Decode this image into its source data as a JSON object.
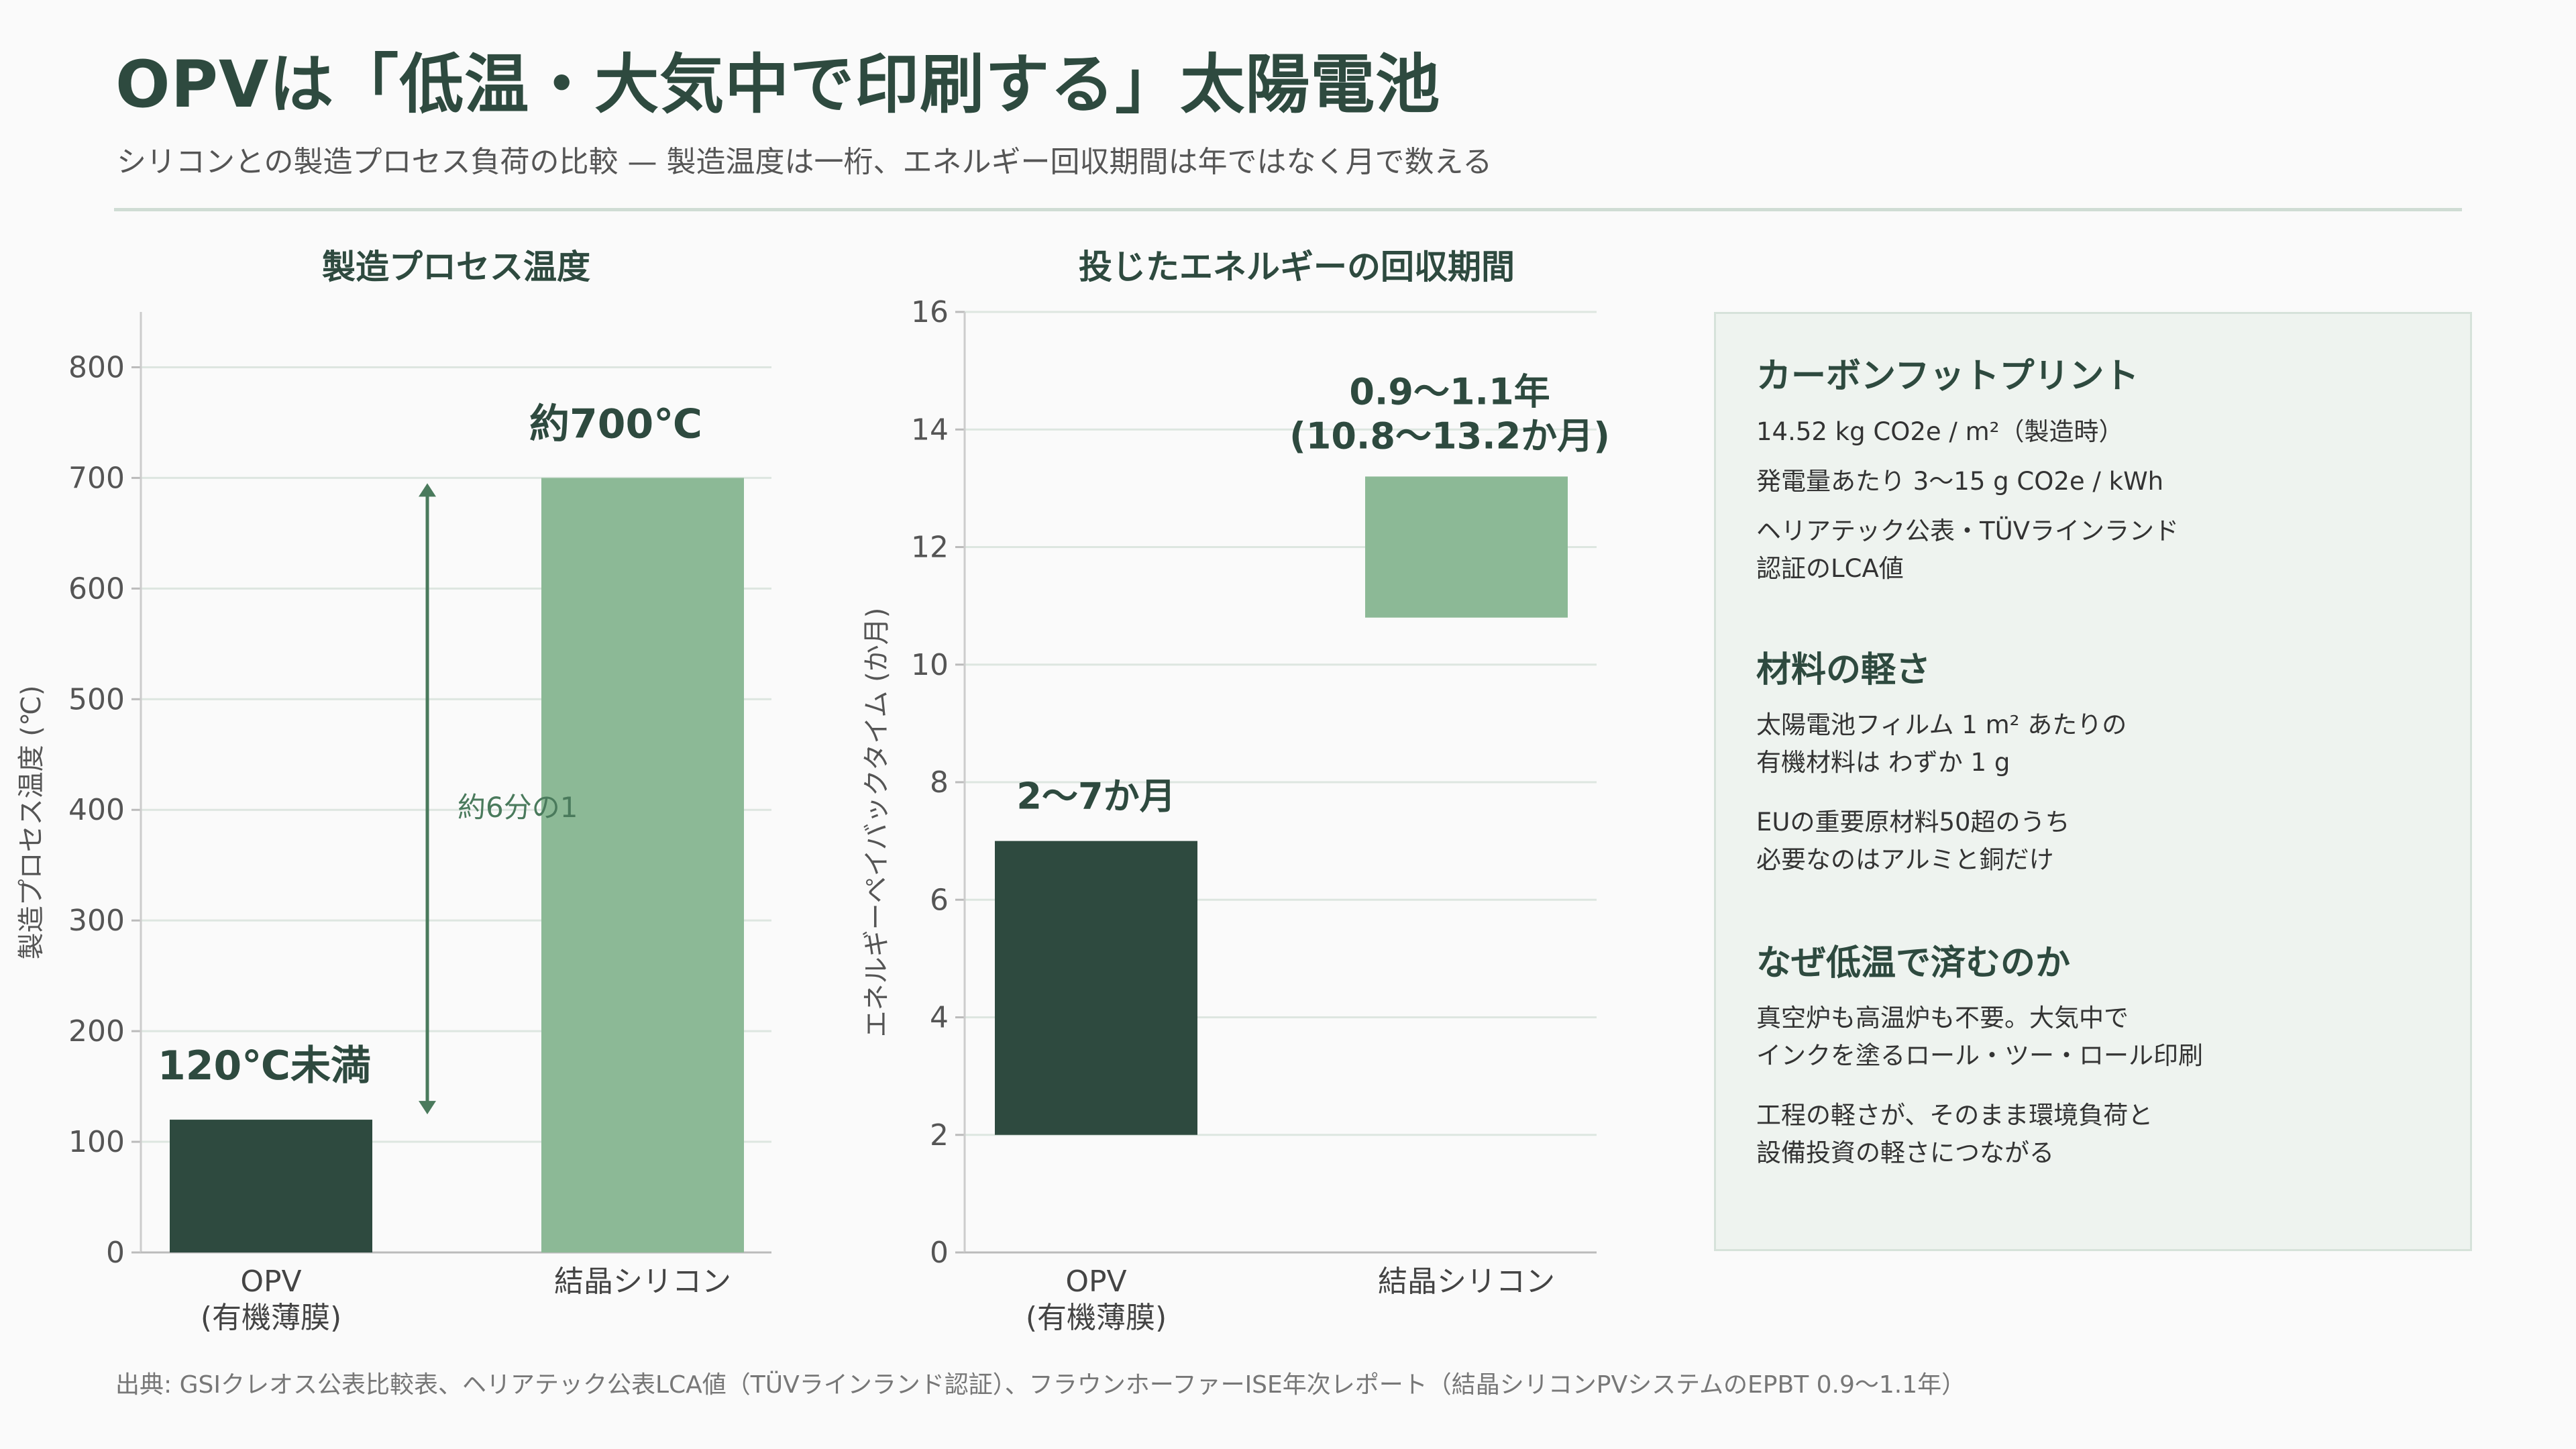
{
  "title": "OPVは「低温・大気中で印刷する」太陽電池",
  "subtitle": "シリコンとの製造プロセス負荷の比較 — 製造温度は一桁、エネルギー回収期間は年ではなく月で数える",
  "colors": {
    "dark": "#2e4a3f",
    "light": "#8cb996",
    "grid": "#dde6e0",
    "accent": "#4a7a5c"
  },
  "chart_data": [
    {
      "type": "bar",
      "title": "製造プロセス温度",
      "ylabel": "製造プロセス温度 (℃)",
      "xlabel": "",
      "ylim": [
        0,
        850
      ],
      "yticks": [
        0,
        100,
        200,
        300,
        400,
        500,
        600,
        700,
        800
      ],
      "grid": true,
      "categories": [
        {
          "line1": "OPV",
          "line2": "(有機薄膜)"
        },
        {
          "line1": "結晶シリコン",
          "line2": ""
        }
      ],
      "values": [
        120,
        700
      ],
      "bar_colors": [
        "#2e4a3f",
        "#8cb996"
      ],
      "data_labels": [
        "120℃未満",
        "約700℃"
      ],
      "annotation": {
        "text": "約6分の1",
        "from": 120,
        "to": 700
      }
    },
    {
      "type": "bar",
      "title": "投じたエネルギーの回収期間",
      "ylabel": "エネルギーペイバックタイム (か月)",
      "xlabel": "",
      "ylim": [
        0,
        16
      ],
      "yticks": [
        0,
        2,
        4,
        6,
        8,
        10,
        12,
        14,
        16
      ],
      "grid": true,
      "categories": [
        {
          "line1": "OPV",
          "line2": "(有機薄膜)"
        },
        {
          "line1": "結晶シリコン",
          "line2": ""
        }
      ],
      "ranges": [
        [
          2,
          7
        ],
        [
          10.8,
          13.2
        ]
      ],
      "bar_colors": [
        "#2e4a3f",
        "#8cb996"
      ],
      "data_labels": [
        {
          "line1": "2〜7か月",
          "line2": ""
        },
        {
          "line1": "0.9〜1.1年",
          "line2": "(10.8〜13.2か月)"
        }
      ]
    }
  ],
  "panel": {
    "carbon": {
      "heading": "カーボンフットプリント",
      "line1": "14.52 kg CO2e / m²（製造時）",
      "line2": "発電量あたり 3〜15 g CO2e / kWh",
      "line3a": "ヘリアテック公表・TÜVラインランド",
      "line3b": "認証のLCA値"
    },
    "material": {
      "heading": "材料の軽さ",
      "line1a": "太陽電池フィルム 1 m² あたりの",
      "line1b": "有機材料は わずか 1 g",
      "line2a": "EUの重要原材料50超のうち",
      "line2b": "必要なのはアルミと銅だけ"
    },
    "lowtemp": {
      "heading": "なぜ低温で済むのか",
      "line1a": "真空炉も高温炉も不要。大気中で",
      "line1b": "インクを塗るロール・ツー・ロール印刷",
      "line2a": "工程の軽さが、そのまま環境負荷と",
      "line2b": "設備投資の軽さにつながる"
    }
  },
  "source": "出典: GSIクレオス公表比較表、ヘリアテック公表LCA値（TÜVラインランド認証）、フラウンホーファーISE年次レポート（結晶シリコンPVシステムのEPBT 0.9〜1.1年）"
}
